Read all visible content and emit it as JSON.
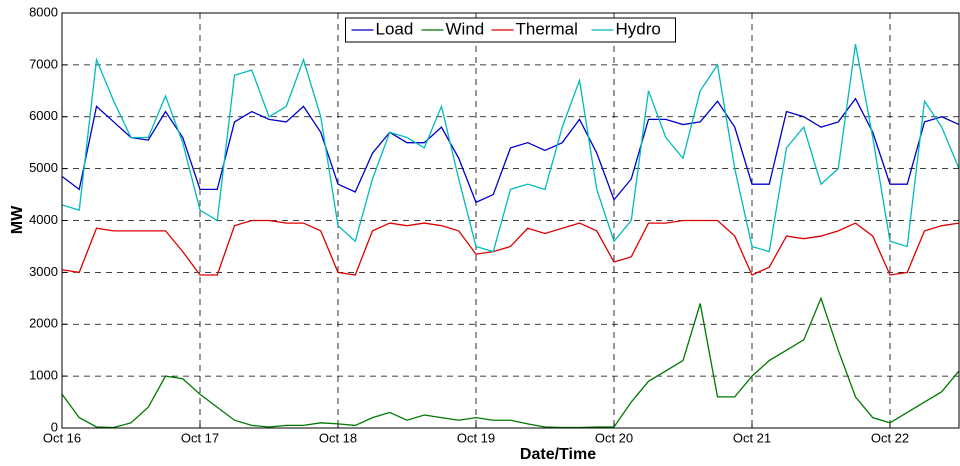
{
  "chart_data": {
    "type": "line",
    "xlabel": "Date/Time",
    "ylabel": "MW",
    "x": [
      0,
      0.125,
      0.25,
      0.375,
      0.5,
      0.625,
      0.75,
      0.875,
      1,
      1.125,
      1.25,
      1.375,
      1.5,
      1.625,
      1.75,
      1.875,
      2,
      2.125,
      2.25,
      2.375,
      2.5,
      2.625,
      2.75,
      2.875,
      3,
      3.125,
      3.25,
      3.375,
      3.5,
      3.625,
      3.75,
      3.875,
      4,
      4.125,
      4.25,
      4.375,
      4.5,
      4.625,
      4.75,
      4.875,
      5,
      5.125,
      5.25,
      5.375,
      5.5,
      5.625,
      5.75,
      5.875,
      6,
      6.125,
      6.25,
      6.375,
      6.5
    ],
    "series": [
      {
        "name": "Load",
        "color": "#0000cc",
        "values": [
          4850,
          4600,
          6200,
          5900,
          5600,
          5550,
          6100,
          5600,
          4600,
          4600,
          5900,
          6100,
          5950,
          5900,
          6200,
          5700,
          4700,
          4550,
          5300,
          5700,
          5500,
          5500,
          5800,
          5200,
          4350,
          4500,
          5400,
          5500,
          5350,
          5500,
          5950,
          5300,
          4400,
          4800,
          5950,
          5950,
          5850,
          5900,
          6300,
          5800,
          4700,
          4700,
          6100,
          6000,
          5800,
          5900,
          6350,
          5700,
          4700,
          4700,
          5900,
          6000,
          5850
        ]
      },
      {
        "name": "Wind",
        "color": "#007700",
        "values": [
          650,
          200,
          20,
          10,
          100,
          400,
          1000,
          950,
          650,
          400,
          150,
          50,
          20,
          50,
          50,
          100,
          80,
          50,
          200,
          300,
          150,
          250,
          200,
          150,
          200,
          150,
          150,
          80,
          20,
          10,
          10,
          20,
          20,
          500,
          900,
          1100,
          1300,
          2400,
          600,
          600,
          1000,
          1300,
          1500,
          1700,
          2500,
          1500,
          600,
          200,
          100,
          300,
          500,
          700,
          1100
        ]
      },
      {
        "name": "Thermal",
        "color": "#dd0000",
        "values": [
          3050,
          3000,
          3850,
          3800,
          3800,
          3800,
          3800,
          3400,
          2950,
          2950,
          3900,
          4000,
          4000,
          3950,
          3950,
          3800,
          3000,
          2950,
          3800,
          3950,
          3900,
          3950,
          3900,
          3800,
          3350,
          3400,
          3500,
          3850,
          3750,
          3850,
          3950,
          3800,
          3200,
          3300,
          3950,
          3950,
          4000,
          4000,
          4000,
          3700,
          2950,
          3100,
          3700,
          3650,
          3700,
          3800,
          3950,
          3700,
          2950,
          3000,
          3800,
          3900,
          3950
        ]
      },
      {
        "name": "Hydro",
        "color": "#00bbbb",
        "values": [
          4300,
          4200,
          7100,
          6300,
          5600,
          5600,
          6400,
          5500,
          4200,
          4000,
          6800,
          6900,
          6000,
          6200,
          7100,
          6000,
          3900,
          3600,
          4800,
          5700,
          5600,
          5400,
          6200,
          4800,
          3500,
          3400,
          4600,
          4700,
          4600,
          5800,
          6700,
          4600,
          3600,
          4000,
          6500,
          5600,
          5200,
          6500,
          7000,
          5000,
          3500,
          3400,
          5400,
          5800,
          4700,
          5000,
          7400,
          5600,
          3600,
          3500,
          6300,
          5800,
          5000
        ]
      }
    ],
    "xlim": [
      0,
      6.5
    ],
    "xticks": [
      {
        "value": 0,
        "label": "Oct 16"
      },
      {
        "value": 1,
        "label": "Oct 17"
      },
      {
        "value": 2,
        "label": "Oct 18"
      },
      {
        "value": 3,
        "label": "Oct 19"
      },
      {
        "value": 4,
        "label": "Oct 20"
      },
      {
        "value": 5,
        "label": "Oct 21"
      },
      {
        "value": 6,
        "label": "Oct 22"
      }
    ],
    "ylim": [
      0,
      8000
    ],
    "yticks": [
      0,
      1000,
      2000,
      3000,
      4000,
      5000,
      6000,
      7000,
      8000
    ],
    "grid": true,
    "legend": "upper center"
  }
}
